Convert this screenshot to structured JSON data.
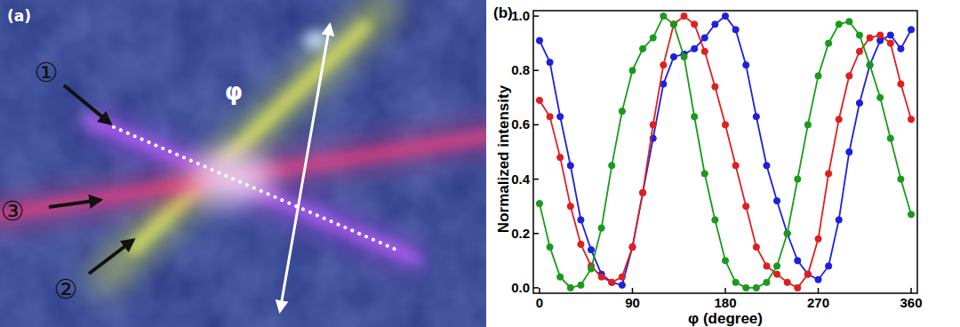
{
  "photo": {
    "label": "(a)",
    "beam_labels": [
      "①",
      "②",
      "③"
    ],
    "angle_label": "φ"
  },
  "chart_data": {
    "type": "line",
    "title": "(b)",
    "x_label": "φ (degree)",
    "y_label": "Normalized intensity",
    "x": [
      0,
      10,
      20,
      30,
      40,
      50,
      60,
      70,
      80,
      90,
      100,
      110,
      120,
      130,
      140,
      150,
      160,
      170,
      180,
      190,
      200,
      210,
      220,
      230,
      240,
      250,
      260,
      270,
      280,
      290,
      300,
      310,
      320,
      330,
      340,
      350,
      360
    ],
    "series": [
      {
        "color": "#1f1fe0",
        "marker": "circle",
        "line_style": "solid",
        "values": [
          0.91,
          0.83,
          0.63,
          0.45,
          0.25,
          0.14,
          0.05,
          0.02,
          0.01,
          0.15,
          0.35,
          0.55,
          0.75,
          0.85,
          0.86,
          0.88,
          0.92,
          0.97,
          1.0,
          0.95,
          0.82,
          0.63,
          0.45,
          0.32,
          0.2,
          0.1,
          0.05,
          0.03,
          0.08,
          0.25,
          0.5,
          0.68,
          0.82,
          0.91,
          0.93,
          0.88,
          0.95
        ]
      },
      {
        "color": "#e01f1f",
        "marker": "circle",
        "line_style": "solid",
        "values": [
          0.69,
          0.63,
          0.48,
          0.3,
          0.16,
          0.08,
          0.04,
          0.02,
          0.04,
          0.15,
          0.35,
          0.6,
          0.82,
          0.97,
          1.0,
          0.97,
          0.87,
          0.74,
          0.6,
          0.45,
          0.3,
          0.15,
          0.08,
          0.05,
          0.02,
          0.0,
          0.05,
          0.18,
          0.42,
          0.62,
          0.78,
          0.87,
          0.92,
          0.93,
          0.9,
          0.75,
          0.62
        ]
      },
      {
        "color": "#1a9a1a",
        "marker": "circle",
        "line_style": "solid",
        "values": [
          0.31,
          0.15,
          0.04,
          0.0,
          0.01,
          0.07,
          0.22,
          0.45,
          0.65,
          0.8,
          0.88,
          0.92,
          1.0,
          0.97,
          0.85,
          0.63,
          0.42,
          0.25,
          0.1,
          0.02,
          0.0,
          0.0,
          0.02,
          0.08,
          0.2,
          0.4,
          0.6,
          0.78,
          0.9,
          0.97,
          0.98,
          0.93,
          0.82,
          0.7,
          0.55,
          0.4,
          0.27
        ]
      }
    ],
    "xlim": [
      -6,
      366
    ],
    "xticks": [
      0,
      90,
      180,
      270,
      360
    ],
    "ylim": [
      -0.02,
      1.02
    ],
    "yticks": [
      {
        "value": 0,
        "label": "0.0"
      },
      0.2,
      0.4,
      0.6,
      0.8,
      {
        "value": 1,
        "label": "1.0"
      }
    ]
  }
}
